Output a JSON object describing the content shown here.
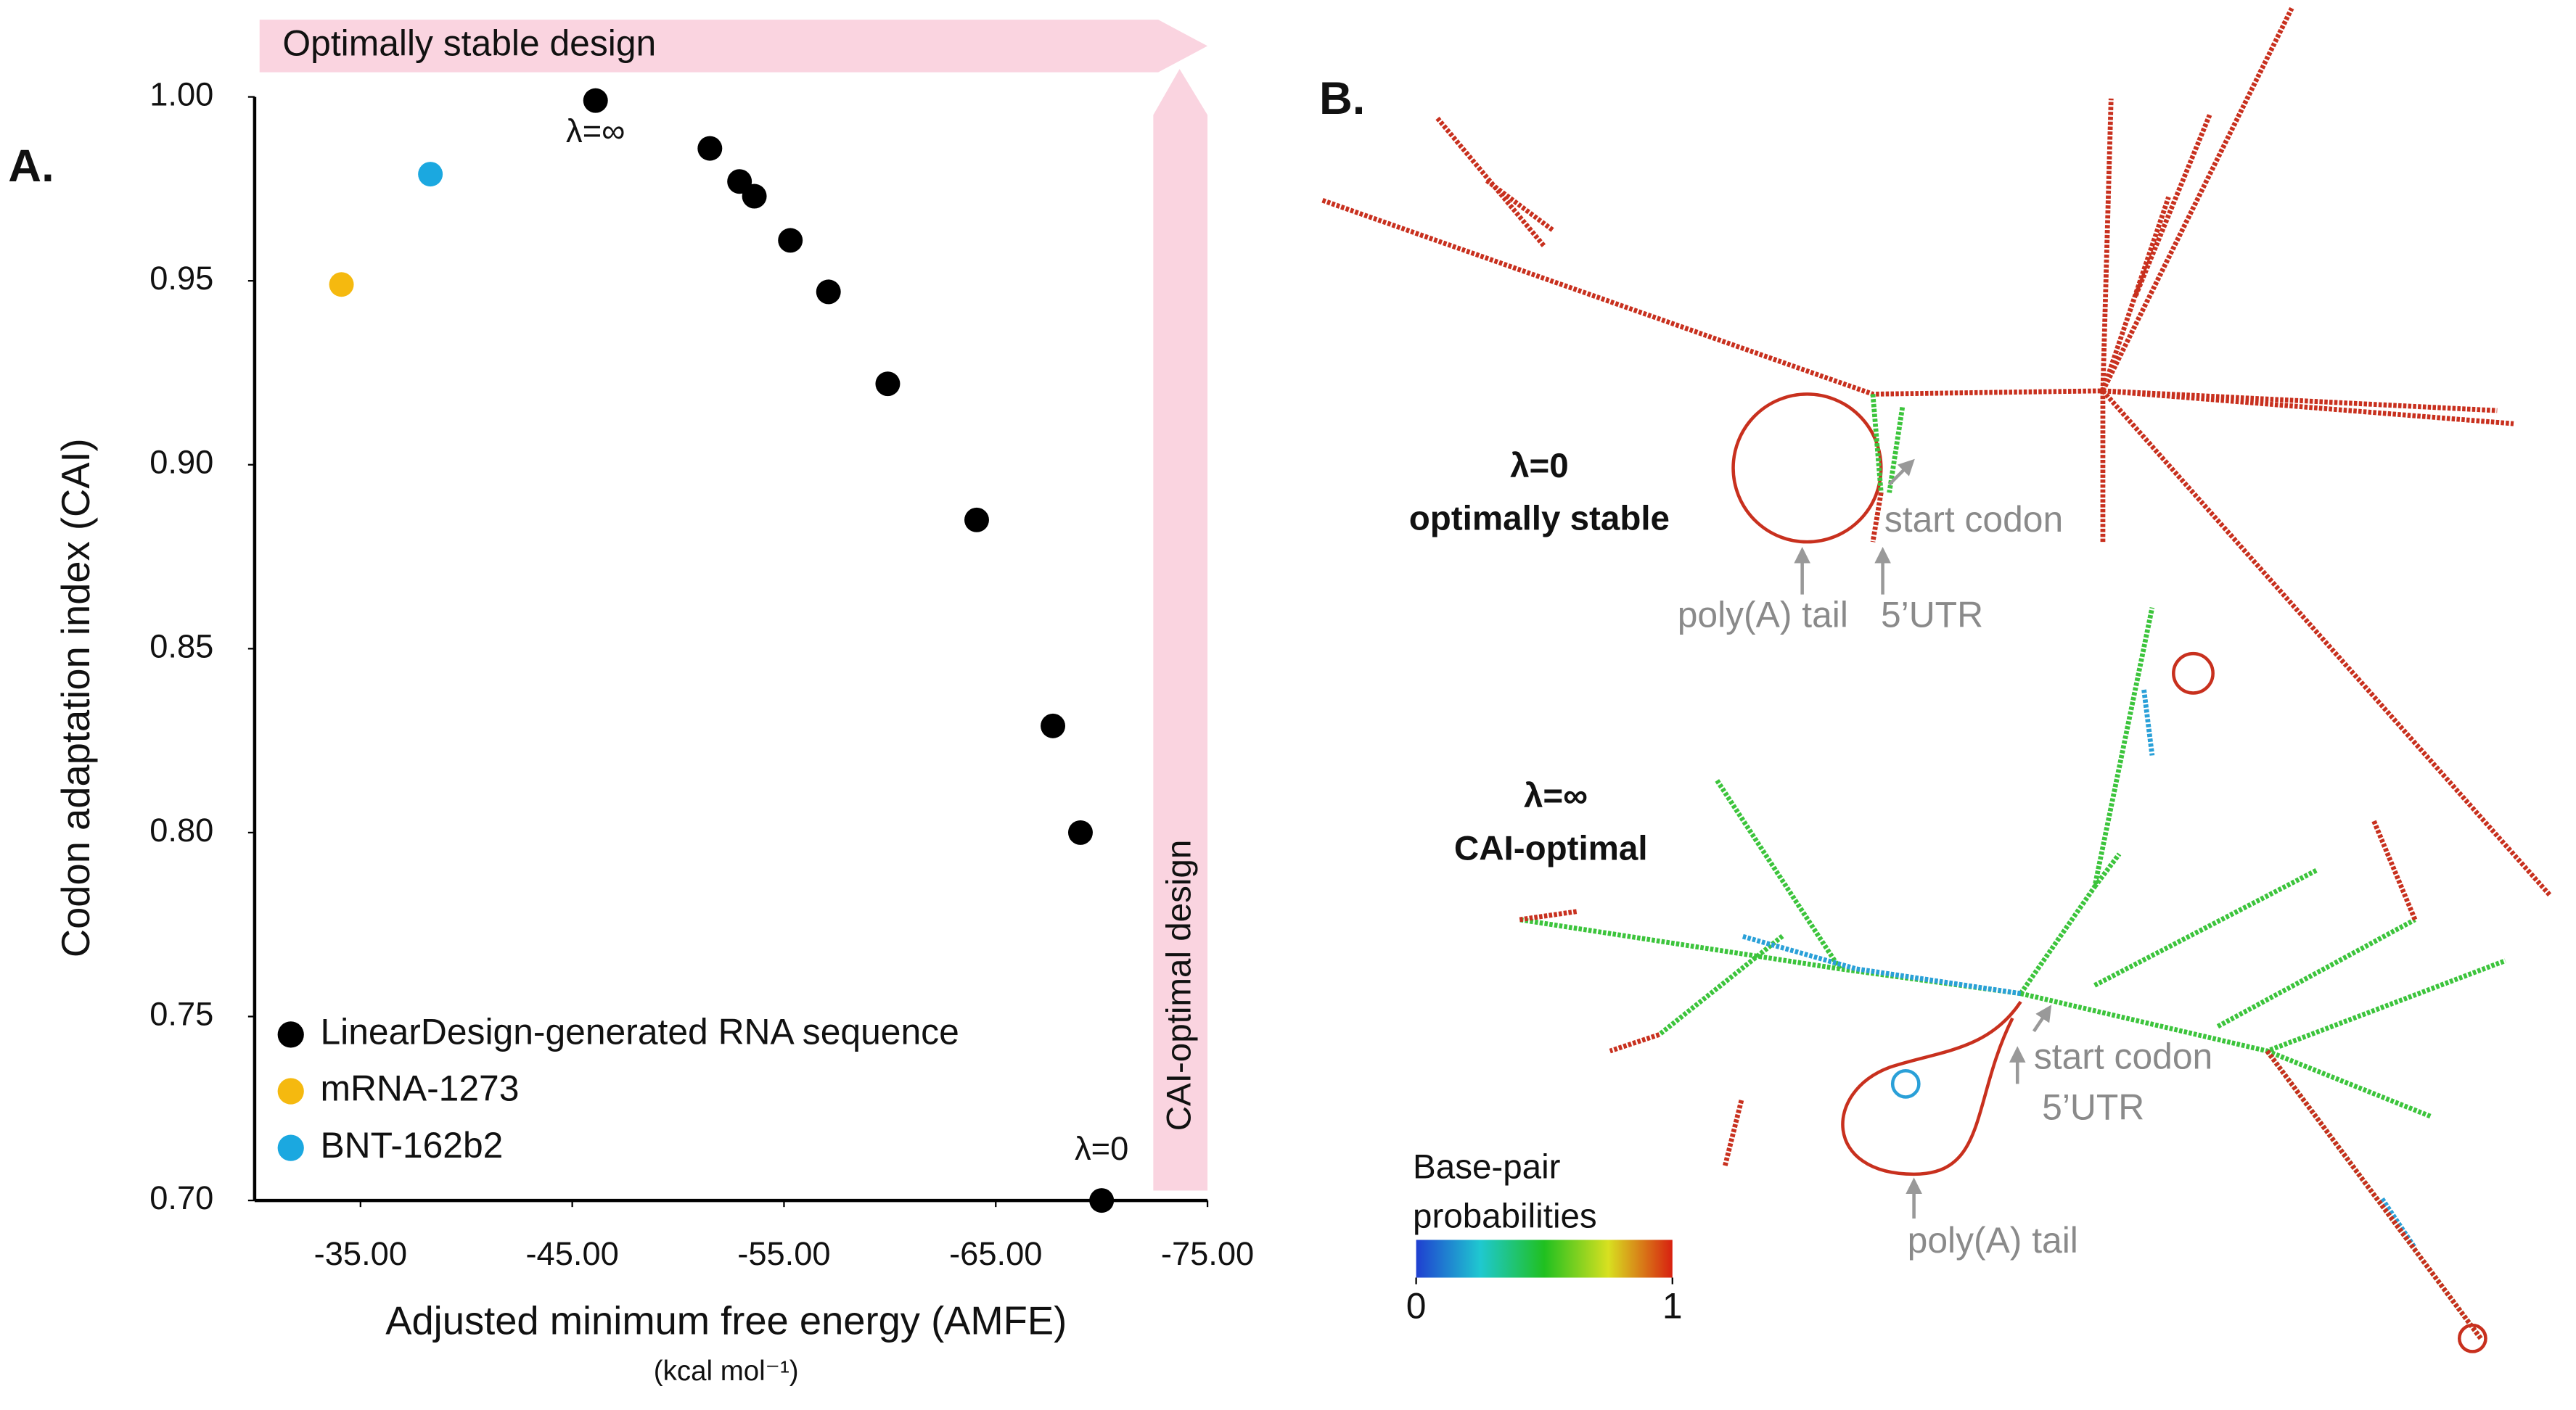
{
  "chart_data": {
    "type": "scatter",
    "label": "A.",
    "x_label": "Adjusted minimum free energy (AMFE)",
    "x_unit": "(kcal mol⁻¹)",
    "y_label": "Codon adaptation index (CAI)",
    "xlim": [
      -30,
      -75
    ],
    "ylim": [
      0.7,
      1.0
    ],
    "xticks": [
      {
        "value": -35,
        "label": "-35.00"
      },
      {
        "value": -45,
        "label": "-45.00"
      },
      {
        "value": -55,
        "label": "-55.00"
      },
      {
        "value": -65,
        "label": "-65.00"
      },
      {
        "value": -75,
        "label": "-75.00"
      }
    ],
    "yticks": [
      {
        "value": 0.7,
        "label": "0.70"
      },
      {
        "value": 0.75,
        "label": "0.75"
      },
      {
        "value": 0.8,
        "label": "0.80"
      },
      {
        "value": 0.85,
        "label": "0.85"
      },
      {
        "value": 0.9,
        "label": "0.90"
      },
      {
        "value": 0.95,
        "label": "0.95"
      },
      {
        "value": 1.0,
        "label": "1.00"
      }
    ],
    "series": [
      {
        "name": "LinearDesign-generated RNA sequence",
        "color": "#000000",
        "x": [
          -46.1,
          -51.5,
          -52.9,
          -53.6,
          -55.3,
          -57.1,
          -59.9,
          -64.1,
          -67.7,
          -69.0,
          -70.0
        ],
        "values": [
          0.999,
          0.986,
          0.977,
          0.973,
          0.961,
          0.947,
          0.922,
          0.885,
          0.829,
          0.8,
          0.7
        ]
      },
      {
        "name": "mRNA-1273",
        "color": "#f5b90f",
        "x": [
          -34.1
        ],
        "values": [
          0.949
        ]
      },
      {
        "name": "BNT-162b2",
        "color": "#1ba8e0",
        "x": [
          -38.3
        ],
        "values": [
          0.979
        ]
      }
    ],
    "annotations": [
      "λ=∞",
      "λ=0"
    ],
    "arrows": [
      "Optimally stable design",
      "CAI-optimal design"
    ]
  },
  "panel_b": {
    "label": "B.",
    "top": {
      "title": [
        "λ=0",
        "optimally stable"
      ],
      "labels": [
        "start codon",
        "poly(A) tail",
        "5’UTR"
      ]
    },
    "bottom": {
      "title": [
        "λ=∞",
        "CAI-optimal"
      ],
      "labels": [
        "start codon",
        "5’UTR",
        "poly(A) tail"
      ]
    },
    "colorbar": {
      "title": [
        "Base-pair",
        "probabilities"
      ],
      "ticks": [
        0,
        1
      ]
    }
  }
}
